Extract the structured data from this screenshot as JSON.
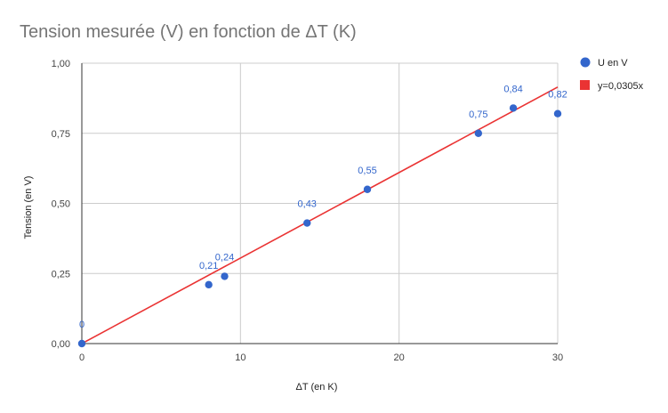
{
  "chart_data": {
    "type": "scatter",
    "title": "Tension mesurée (V) en fonction de ΔT (K)",
    "xlabel": "ΔT (en K)",
    "ylabel": "Tension (en V)",
    "xlim": [
      0,
      30
    ],
    "ylim": [
      0,
      1
    ],
    "x_ticks": [
      0,
      10,
      20,
      30
    ],
    "x_tick_labels": [
      "0",
      "10",
      "20",
      "30"
    ],
    "y_ticks": [
      0,
      0.25,
      0.5,
      0.75,
      1
    ],
    "y_tick_labels": [
      "0,00",
      "0,25",
      "0,50",
      "0,75",
      "1,00"
    ],
    "grid": true,
    "legend_position": "right",
    "series": [
      {
        "name": "U en V",
        "type": "scatter",
        "color": "#3366cc",
        "x": [
          0,
          8,
          9,
          14.2,
          18,
          25,
          27.2,
          30
        ],
        "y": [
          0,
          0.21,
          0.24,
          0.43,
          0.55,
          0.75,
          0.84,
          0.82
        ],
        "labels": [
          "0",
          "0,21",
          "0,24",
          "0,43",
          "0,55",
          "0,75",
          "0,84",
          "0,82"
        ]
      },
      {
        "name": "y=0,0305x",
        "type": "line",
        "color": "#ea3333",
        "slope": 0.0305,
        "x_range": [
          0,
          30
        ]
      }
    ]
  }
}
